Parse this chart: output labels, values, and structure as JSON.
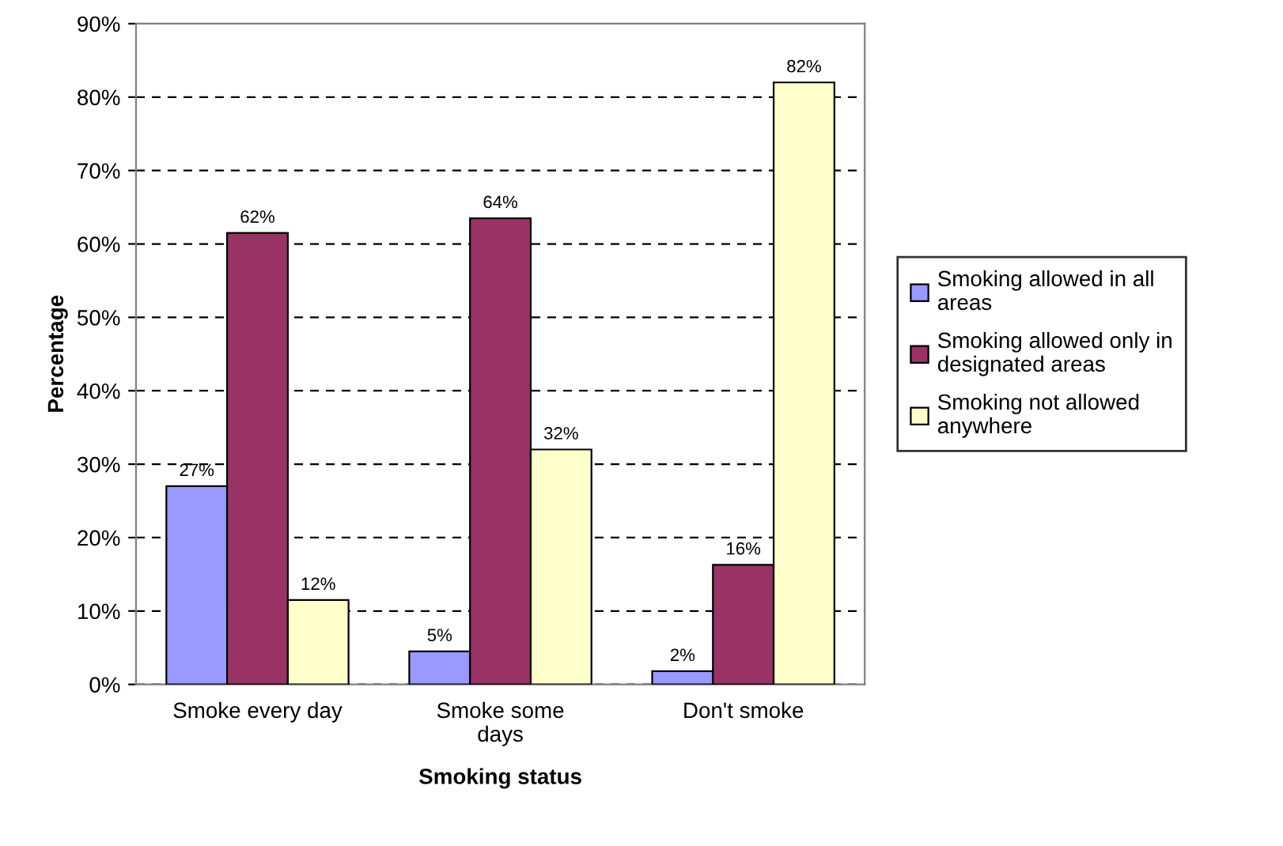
{
  "chart_data": {
    "type": "bar",
    "xlabel": "Smoking status",
    "ylabel": "Percentage",
    "categories": [
      "Smoke every day",
      "Smoke some\ndays",
      "Don't smoke"
    ],
    "series": [
      {
        "name": "Smoking allowed in all\nareas",
        "color": "#9999ff",
        "values": [
          27,
          4.5,
          1.8
        ],
        "value_labels": [
          "27%",
          "5%",
          "2%"
        ]
      },
      {
        "name": "Smoking allowed only in\ndesignated areas",
        "color": "#993366",
        "values": [
          61.5,
          63.5,
          16.3
        ],
        "value_labels": [
          "62%",
          "64%",
          "16%"
        ]
      },
      {
        "name": "Smoking not allowed\nanywhere",
        "color": "#ffffcc",
        "values": [
          11.5,
          32,
          82
        ],
        "value_labels": [
          "12%",
          "32%",
          "82%"
        ]
      }
    ],
    "ylim": [
      0,
      90
    ],
    "yticks": [
      {
        "value": 0,
        "label": "0%"
      },
      {
        "value": 10,
        "label": "10%"
      },
      {
        "value": 20,
        "label": "20%"
      },
      {
        "value": 30,
        "label": "30%"
      },
      {
        "value": 40,
        "label": "40%"
      },
      {
        "value": 50,
        "label": "50%"
      },
      {
        "value": 60,
        "label": "60%"
      },
      {
        "value": 70,
        "label": "70%"
      },
      {
        "value": 80,
        "label": "80%"
      },
      {
        "value": 90,
        "label": "90%"
      }
    ],
    "grid": "y",
    "legend": "right"
  }
}
